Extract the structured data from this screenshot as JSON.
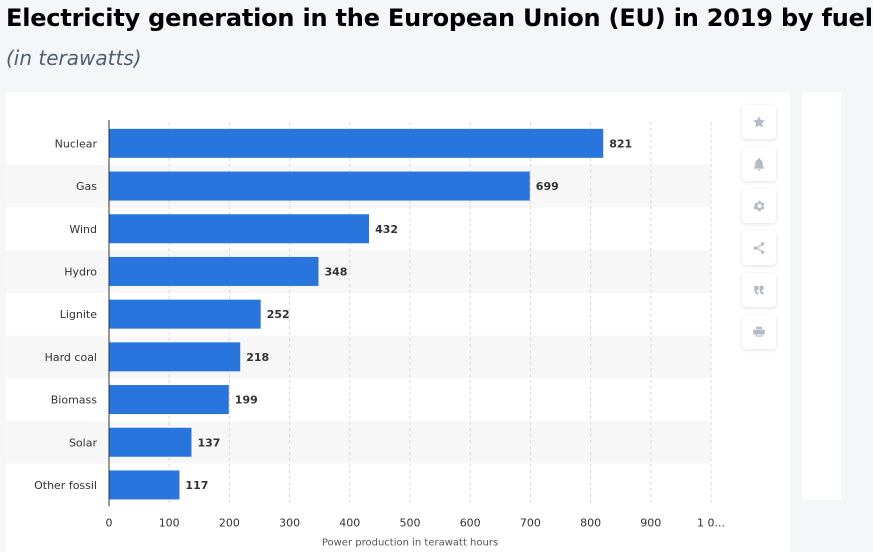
{
  "header": {
    "title": "Electricity generation in the European Union (EU) in 2019 by fuel",
    "subtitle": "(in terawatts)"
  },
  "chart_data": {
    "type": "bar",
    "orientation": "horizontal",
    "categories": [
      "Nuclear",
      "Gas",
      "Wind",
      "Hydro",
      "Lignite",
      "Hard coal",
      "Biomass",
      "Solar",
      "Other fossil"
    ],
    "values": [
      821,
      699,
      432,
      348,
      252,
      218,
      199,
      137,
      117
    ],
    "xlabel": "Power production in terawatt hours",
    "xlim": [
      0,
      1000
    ],
    "x_ticks": [
      "0",
      "100",
      "200",
      "300",
      "400",
      "500",
      "600",
      "700",
      "800",
      "900",
      "1 0..."
    ],
    "grid": true,
    "bar_color": "#2876dd"
  },
  "toolbar": {
    "icons": [
      "star-icon",
      "bell-icon",
      "gear-icon",
      "share-icon",
      "quote-icon",
      "print-icon"
    ]
  }
}
